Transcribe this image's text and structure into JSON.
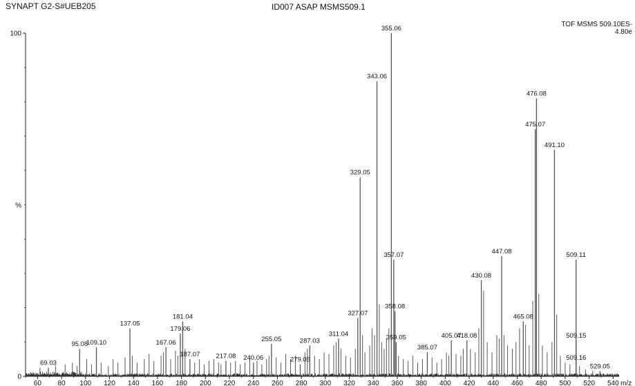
{
  "header": {
    "instrument": "SYNAPT G2-S#UEB205",
    "sample": "ID007 ASAP MSMS509.1",
    "scan": "TOF MSMS 509.10ES-",
    "intensity": "4.80e"
  },
  "chart_data": {
    "type": "bar",
    "title": "ID007 ASAP MSMS509.1",
    "xlabel": "m/z",
    "ylabel": "%",
    "xlim": [
      50,
      545
    ],
    "ylim": [
      0,
      100
    ],
    "x_ticks": [
      60,
      80,
      100,
      120,
      140,
      160,
      180,
      200,
      220,
      240,
      260,
      280,
      300,
      320,
      340,
      360,
      380,
      400,
      420,
      440,
      460,
      480,
      500,
      520,
      540
    ],
    "y_ticks": [
      0,
      100
    ],
    "y_tick_percent_label": "%",
    "grid": false,
    "legend": "none",
    "colors": {
      "peaks": "#555555",
      "axis": "#222222",
      "noise": "#1a1a1a"
    },
    "labeled_peaks": [
      {
        "mz": 69.03,
        "label": "69.03",
        "intensity": 2.5
      },
      {
        "mz": 95.08,
        "label": "95.08",
        "intensity": 8.0
      },
      {
        "mz": 109.1,
        "label": "109.10",
        "intensity": 8.5
      },
      {
        "mz": 137.05,
        "label": "137.05",
        "intensity": 14.0
      },
      {
        "mz": 167.06,
        "label": "167.06",
        "intensity": 8.5
      },
      {
        "mz": 179.06,
        "label": "179.06",
        "intensity": 12.5
      },
      {
        "mz": 181.04,
        "label": "181.04",
        "intensity": 16.0
      },
      {
        "mz": 187.07,
        "label": "187.07",
        "intensity": 5.0
      },
      {
        "mz": 217.08,
        "label": "217.08",
        "intensity": 4.5
      },
      {
        "mz": 240.06,
        "label": "240.06",
        "intensity": 4.0
      },
      {
        "mz": 255.05,
        "label": "255.05",
        "intensity": 9.5
      },
      {
        "mz": 279.05,
        "label": "279.05",
        "intensity": 3.5
      },
      {
        "mz": 287.03,
        "label": "287.03",
        "intensity": 9.0
      },
      {
        "mz": 311.04,
        "label": "311.04",
        "intensity": 11.0
      },
      {
        "mz": 327.07,
        "label": "327.07",
        "intensity": 17.0
      },
      {
        "mz": 329.05,
        "label": "329.05",
        "intensity": 58.0
      },
      {
        "mz": 343.06,
        "label": "343.06",
        "intensity": 86.0
      },
      {
        "mz": 355.06,
        "label": "355.06",
        "intensity": 100.0
      },
      {
        "mz": 357.07,
        "label": "357.07",
        "intensity": 34.0
      },
      {
        "mz": 358.08,
        "label": "358.08",
        "intensity": 19.0
      },
      {
        "mz": 359.05,
        "label": "359.05",
        "intensity": 10.0
      },
      {
        "mz": 385.07,
        "label": "385.07",
        "intensity": 7.0
      },
      {
        "mz": 405.07,
        "label": "405.07",
        "intensity": 10.5
      },
      {
        "mz": 418.08,
        "label": "418.08",
        "intensity": 10.5
      },
      {
        "mz": 430.08,
        "label": "430.08",
        "intensity": 28.0
      },
      {
        "mz": 447.08,
        "label": "447.08",
        "intensity": 35.0
      },
      {
        "mz": 465.08,
        "label": "465.08",
        "intensity": 16.0
      },
      {
        "mz": 475.07,
        "label": "475.07",
        "intensity": 72.0
      },
      {
        "mz": 476.08,
        "label": "476.08",
        "intensity": 81.0
      },
      {
        "mz": 491.1,
        "label": "491.10",
        "intensity": 66.0
      },
      {
        "mz": 509.11,
        "label": "509.11",
        "intensity": 34.0
      },
      {
        "mz": 509.15,
        "label": "509.15",
        "intensity": 10.5
      },
      {
        "mz": 509.16,
        "label": "509.16",
        "intensity": 4.0
      },
      {
        "mz": 529.05,
        "label": "529.05",
        "intensity": 1.5
      }
    ],
    "minor_peaks": [
      {
        "mz": 62,
        "intensity": 2.5
      },
      {
        "mz": 75,
        "intensity": 3.0
      },
      {
        "mz": 83,
        "intensity": 3.5
      },
      {
        "mz": 89,
        "intensity": 4.0
      },
      {
        "mz": 93,
        "intensity": 3.0
      },
      {
        "mz": 101,
        "intensity": 5.0
      },
      {
        "mz": 105,
        "intensity": 3.5
      },
      {
        "mz": 113,
        "intensity": 4.0
      },
      {
        "mz": 119,
        "intensity": 3.0
      },
      {
        "mz": 123,
        "intensity": 5.0
      },
      {
        "mz": 127,
        "intensity": 4.0
      },
      {
        "mz": 133,
        "intensity": 5.5
      },
      {
        "mz": 139,
        "intensity": 6.0
      },
      {
        "mz": 143,
        "intensity": 4.0
      },
      {
        "mz": 149,
        "intensity": 5.0
      },
      {
        "mz": 153,
        "intensity": 6.5
      },
      {
        "mz": 157,
        "intensity": 4.5
      },
      {
        "mz": 163,
        "intensity": 6.0
      },
      {
        "mz": 165,
        "intensity": 7.0
      },
      {
        "mz": 171,
        "intensity": 5.0
      },
      {
        "mz": 175,
        "intensity": 7.5
      },
      {
        "mz": 177,
        "intensity": 6.0
      },
      {
        "mz": 183,
        "intensity": 8.0
      },
      {
        "mz": 191,
        "intensity": 4.0
      },
      {
        "mz": 195,
        "intensity": 5.0
      },
      {
        "mz": 199,
        "intensity": 3.5
      },
      {
        "mz": 203,
        "intensity": 4.5
      },
      {
        "mz": 207,
        "intensity": 5.0
      },
      {
        "mz": 211,
        "intensity": 4.0
      },
      {
        "mz": 213,
        "intensity": 3.5
      },
      {
        "mz": 221,
        "intensity": 4.0
      },
      {
        "mz": 225,
        "intensity": 4.5
      },
      {
        "mz": 229,
        "intensity": 3.5
      },
      {
        "mz": 233,
        "intensity": 4.0
      },
      {
        "mz": 237,
        "intensity": 5.5
      },
      {
        "mz": 243,
        "intensity": 4.5
      },
      {
        "mz": 247,
        "intensity": 3.5
      },
      {
        "mz": 251,
        "intensity": 5.0
      },
      {
        "mz": 253,
        "intensity": 6.0
      },
      {
        "mz": 259,
        "intensity": 5.5
      },
      {
        "mz": 263,
        "intensity": 4.0
      },
      {
        "mz": 267,
        "intensity": 6.5
      },
      {
        "mz": 271,
        "intensity": 5.0
      },
      {
        "mz": 275,
        "intensity": 6.0
      },
      {
        "mz": 283,
        "intensity": 7.0
      },
      {
        "mz": 285,
        "intensity": 8.0
      },
      {
        "mz": 291,
        "intensity": 6.0
      },
      {
        "mz": 295,
        "intensity": 5.0
      },
      {
        "mz": 299,
        "intensity": 7.0
      },
      {
        "mz": 303,
        "intensity": 6.5
      },
      {
        "mz": 307,
        "intensity": 9.0
      },
      {
        "mz": 309,
        "intensity": 10.0
      },
      {
        "mz": 313,
        "intensity": 8.0
      },
      {
        "mz": 317,
        "intensity": 6.0
      },
      {
        "mz": 321,
        "intensity": 5.5
      },
      {
        "mz": 325,
        "intensity": 8.0
      },
      {
        "mz": 331,
        "intensity": 12.0
      },
      {
        "mz": 333,
        "intensity": 7.0
      },
      {
        "mz": 337,
        "intensity": 9.0
      },
      {
        "mz": 339,
        "intensity": 14.0
      },
      {
        "mz": 341,
        "intensity": 12.0
      },
      {
        "mz": 345,
        "intensity": 21.0
      },
      {
        "mz": 347,
        "intensity": 10.0
      },
      {
        "mz": 349,
        "intensity": 8.0
      },
      {
        "mz": 351,
        "intensity": 11.0
      },
      {
        "mz": 353,
        "intensity": 14.0
      },
      {
        "mz": 361,
        "intensity": 6.0
      },
      {
        "mz": 365,
        "intensity": 5.0
      },
      {
        "mz": 369,
        "intensity": 4.5
      },
      {
        "mz": 373,
        "intensity": 6.0
      },
      {
        "mz": 377,
        "intensity": 4.0
      },
      {
        "mz": 381,
        "intensity": 5.0
      },
      {
        "mz": 389,
        "intensity": 5.5
      },
      {
        "mz": 393,
        "intensity": 4.0
      },
      {
        "mz": 397,
        "intensity": 5.0
      },
      {
        "mz": 401,
        "intensity": 7.0
      },
      {
        "mz": 403,
        "intensity": 6.0
      },
      {
        "mz": 409,
        "intensity": 6.5
      },
      {
        "mz": 413,
        "intensity": 6.0
      },
      {
        "mz": 415,
        "intensity": 8.0
      },
      {
        "mz": 421,
        "intensity": 8.0
      },
      {
        "mz": 425,
        "intensity": 7.0
      },
      {
        "mz": 428,
        "intensity": 14.0
      },
      {
        "mz": 432,
        "intensity": 25.0
      },
      {
        "mz": 435,
        "intensity": 10.0
      },
      {
        "mz": 439,
        "intensity": 7.0
      },
      {
        "mz": 443,
        "intensity": 12.0
      },
      {
        "mz": 445,
        "intensity": 11.0
      },
      {
        "mz": 449,
        "intensity": 12.0
      },
      {
        "mz": 452,
        "intensity": 9.0
      },
      {
        "mz": 456,
        "intensity": 8.0
      },
      {
        "mz": 459,
        "intensity": 10.0
      },
      {
        "mz": 462,
        "intensity": 14.0
      },
      {
        "mz": 467,
        "intensity": 15.0
      },
      {
        "mz": 470,
        "intensity": 9.0
      },
      {
        "mz": 473,
        "intensity": 22.0
      },
      {
        "mz": 478,
        "intensity": 24.0
      },
      {
        "mz": 481,
        "intensity": 9.0
      },
      {
        "mz": 485,
        "intensity": 7.0
      },
      {
        "mz": 489,
        "intensity": 10.0
      },
      {
        "mz": 493,
        "intensity": 18.0
      },
      {
        "mz": 496,
        "intensity": 6.0
      },
      {
        "mz": 500,
        "intensity": 4.0
      },
      {
        "mz": 504,
        "intensity": 3.5
      },
      {
        "mz": 512,
        "intensity": 3.0
      },
      {
        "mz": 517,
        "intensity": 2.0
      },
      {
        "mz": 523,
        "intensity": 1.5
      }
    ]
  }
}
